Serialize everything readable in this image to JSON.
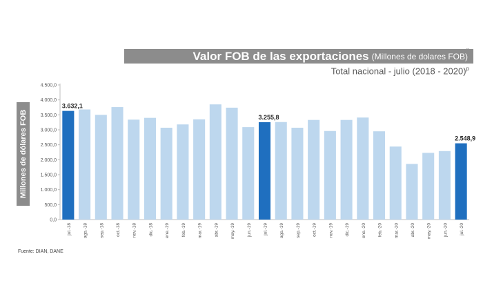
{
  "header": {
    "title": "Valor FOB de las exportaciones",
    "title_unit": "(Millones de dolares FOB)",
    "subtitle": "Total nacional -  julio (2018 - 2020)",
    "subtitle_sup": "p",
    "close_glyph": "ˬ"
  },
  "footer": {
    "source": "Fuente: DIAN, DANE"
  },
  "colors": {
    "highlight": "#1f6fbf",
    "normal": "#bdd7ee",
    "title_bg": "#8c8c8c",
    "axis_text": "#595959"
  },
  "chart_data": {
    "type": "bar",
    "title": "Valor FOB de las exportaciones",
    "ylabel": "Millones de dólares FOB",
    "xlabel": "",
    "ylim": [
      0,
      4500
    ],
    "yticks": [
      0,
      500,
      1000,
      1500,
      2000,
      2500,
      3000,
      3500,
      4000,
      4500
    ],
    "ytick_labels": [
      "0,0",
      "500,0",
      "1.000,0",
      "1.500,0",
      "2.000,0",
      "2.500,0",
      "3.000,0",
      "3.500,0",
      "4.000,0",
      "4.500,0"
    ],
    "grid": false,
    "categories": [
      "jul.-18",
      "ago.-18",
      "sep.-18",
      "oct.-18",
      "nov.-18",
      "dic.-18",
      "ene.-19",
      "feb.-19",
      "mar.-19",
      "abr.-19",
      "may.-19",
      "jun.-19",
      "jul.-19",
      "ago.-19",
      "sep.-19",
      "oct.-19",
      "nov.-19",
      "dic.-19",
      "ene.-20",
      "feb.-20",
      "mar.-20",
      "abr.-20",
      "may.-20",
      "jun.-20",
      "jul.-20"
    ],
    "values": [
      3632.1,
      3680,
      3500,
      3760,
      3340,
      3400,
      3070,
      3180,
      3350,
      3850,
      3740,
      3090,
      3255.8,
      3260,
      3070,
      3330,
      2960,
      3330,
      3410,
      2950,
      2440,
      1860,
      2230,
      2290,
      2548.9
    ],
    "highlighted": [
      0,
      12,
      24
    ],
    "data_labels": [
      {
        "index": 0,
        "text": "3.632,1"
      },
      {
        "index": 12,
        "text": "3.255,8"
      },
      {
        "index": 24,
        "text": "2.548,9"
      }
    ]
  }
}
